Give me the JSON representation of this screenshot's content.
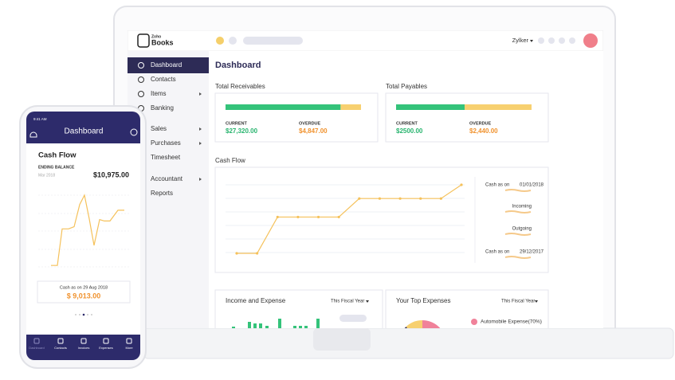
{
  "laptop": {
    "logo_brand": "Zoho",
    "logo_product": "Books",
    "org_name": "Zylker",
    "sidebar": [
      {
        "label": "Dashboard",
        "submenu": false,
        "active": true
      },
      {
        "label": "Contacts",
        "submenu": false,
        "active": false
      },
      {
        "label": "Items",
        "submenu": true,
        "active": false
      },
      {
        "label": "Banking",
        "submenu": false,
        "active": false
      },
      {
        "label": "Sales",
        "submenu": true,
        "active": false
      },
      {
        "label": "Purchases",
        "submenu": true,
        "active": false
      },
      {
        "label": "Timesheet",
        "submenu": false,
        "active": false
      },
      {
        "label": "Accountant",
        "submenu": true,
        "active": false
      },
      {
        "label": "Reports",
        "submenu": false,
        "active": false
      }
    ],
    "page_title": "Dashboard",
    "receivables": {
      "title": "Total Receivables",
      "labels": [
        "CURRENT",
        "OVERDUE"
      ],
      "values": [
        27320,
        4847
      ],
      "value_labels": [
        "$27,320.00",
        "$4,847.00"
      ],
      "colors": [
        "#34c37a",
        "#f7d070"
      ]
    },
    "payables": {
      "title": "Total Payables",
      "labels": [
        "CURRENT",
        "OVERDUE"
      ],
      "values": [
        2500,
        2440
      ],
      "value_labels": [
        "$2500.00",
        "$2,440.00"
      ],
      "colors": [
        "#34c37a",
        "#f7d070"
      ]
    },
    "cash_flow": {
      "type": "line",
      "title": "Cash Flow",
      "values": [
        0,
        0,
        53,
        53,
        53,
        53,
        80,
        80,
        80,
        80,
        80,
        100
      ],
      "ylim": [
        0,
        100
      ],
      "color": "#f5c15a",
      "legend": [
        {
          "label": "Cash as on",
          "date": "01/01/2018"
        },
        {
          "label": "Incoming"
        },
        {
          "label": "Outgoing"
        },
        {
          "label": "Cash as on",
          "date": "29/12/2017"
        }
      ]
    },
    "income_expense": {
      "type": "bar",
      "title": "Income and Expense",
      "period": "This Fiscal Year",
      "values": [
        2,
        8,
        6,
        6,
        3,
        12,
        3,
        3,
        3,
        12
      ],
      "color": "#34c37a"
    },
    "top_expenses": {
      "type": "pie",
      "title": "Your Top Expenses",
      "period": "This Fiscal Year",
      "series": [
        {
          "label": "Automobile Expense(70%)",
          "value": 70,
          "color": "#f0829a"
        },
        {
          "value": 18,
          "color": "#2d2b56"
        },
        {
          "value": 12,
          "color": "#f7d070"
        }
      ]
    }
  },
  "phone": {
    "time": "9:41 AM",
    "title": "Dashboard",
    "card_title": "Cash Flow",
    "balance_label": "ENDING BALANCE",
    "period": "Mar 2018",
    "balance": "$10,975.00",
    "type": "line",
    "values": [
      2,
      2,
      53,
      53,
      56,
      87,
      100,
      67,
      30,
      66,
      64,
      64,
      79,
      79
    ],
    "ylim": [
      0,
      100
    ],
    "color": "#f5c15a",
    "cash_label": "Cash as on 29 Aug 2018",
    "cash_value": "$ 9,013.00",
    "nav": [
      "Dashboard",
      "Contacts",
      "Invoices",
      "Expenses",
      "More"
    ]
  }
}
